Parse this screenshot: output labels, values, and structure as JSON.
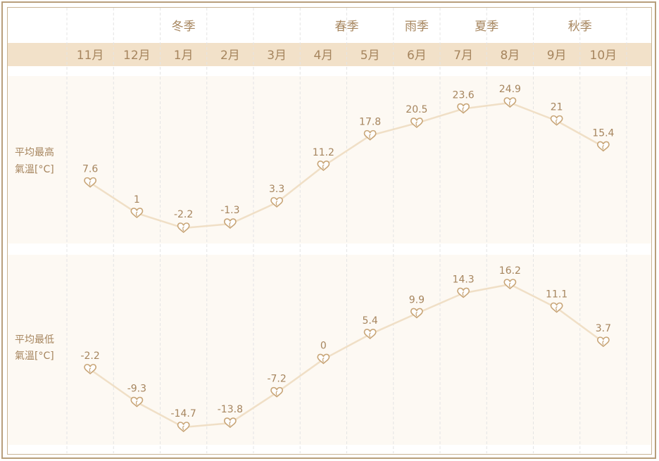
{
  "chart_data": {
    "type": "line",
    "seasons": [
      "冬季",
      "春季",
      "雨季",
      "夏季",
      "秋季"
    ],
    "season_spans": [
      [
        0,
        4
      ],
      [
        5,
        6
      ],
      [
        7,
        7
      ],
      [
        8,
        9
      ],
      [
        10,
        11
      ]
    ],
    "categories": [
      "11月",
      "12月",
      "1月",
      "2月",
      "3月",
      "4月",
      "5月",
      "6月",
      "7月",
      "8月",
      "9月",
      "10月"
    ],
    "rows": [
      {
        "label_lines": [
          "平均最高",
          "氣溫[°C]"
        ],
        "values": [
          7.6,
          1,
          -2.2,
          -1.3,
          3.3,
          11.2,
          17.8,
          20.5,
          23.6,
          24.9,
          21,
          15.4
        ],
        "labels": [
          "7.6",
          "1",
          "-2.2",
          "-1.3",
          "3.3",
          "11.2",
          "17.8",
          "20.5",
          "23.6",
          "24.9",
          "21",
          "15.4"
        ]
      },
      {
        "label_lines": [
          "平均最低",
          "氣溫[°C]"
        ],
        "values": [
          -2.2,
          -9.3,
          -14.7,
          -13.8,
          -7.2,
          0,
          5.4,
          9.9,
          14.3,
          16.2,
          11.1,
          3.7
        ],
        "labels": [
          "-2.2",
          "-9.3",
          "-14.7",
          "-13.8",
          "-7.2",
          "0",
          "5.4",
          "9.9",
          "14.3",
          "16.2",
          "11.1",
          "3.7"
        ]
      }
    ],
    "colors": {
      "band": "#f2e1c9",
      "plot_bg": "#fdf9f3",
      "line": "#f0dfc6",
      "marker": "#c8a577",
      "text": "#a6855e",
      "frame": "#b79e7b"
    },
    "marker_icon": "heart-icon"
  }
}
